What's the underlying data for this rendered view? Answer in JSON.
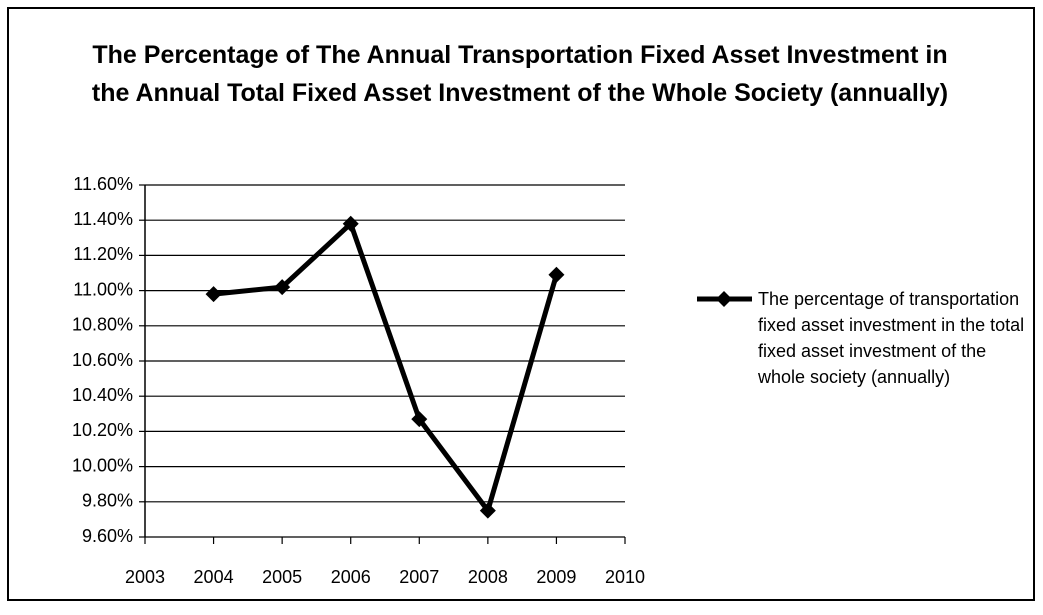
{
  "chart_data": {
    "type": "line",
    "title": "The Percentage of The Annual Transportation Fixed Asset Investment in the Annual Total Fixed Asset Investment of the Whole Society (annually)",
    "x": [
      2004,
      2005,
      2006,
      2007,
      2008,
      2009
    ],
    "series": [
      {
        "name": "The percentage of transportation fixed asset investment in the total fixed asset investment of the whole society (annually)",
        "color": "#000000",
        "values": [
          10.98,
          11.02,
          11.38,
          10.27,
          9.75,
          11.09
        ]
      }
    ],
    "xlim": [
      2003,
      2010
    ],
    "xticks": [
      2003,
      2004,
      2005,
      2006,
      2007,
      2008,
      2009,
      2010
    ],
    "ylim": [
      9.6,
      11.6
    ],
    "yticks": [
      {
        "value": 9.6,
        "label": "9.60%"
      },
      {
        "value": 9.8,
        "label": "9.80%"
      },
      {
        "value": 10.0,
        "label": "10.00%"
      },
      {
        "value": 10.2,
        "label": "10.20%"
      },
      {
        "value": 10.4,
        "label": "10.40%"
      },
      {
        "value": 10.6,
        "label": "10.60%"
      },
      {
        "value": 10.8,
        "label": "10.80%"
      },
      {
        "value": 11.0,
        "label": "11.00%"
      },
      {
        "value": 11.2,
        "label": "11.20%"
      },
      {
        "value": 11.4,
        "label": "11.40%"
      },
      {
        "value": 11.6,
        "label": "11.60%"
      }
    ],
    "grid": true,
    "legend": "right"
  }
}
